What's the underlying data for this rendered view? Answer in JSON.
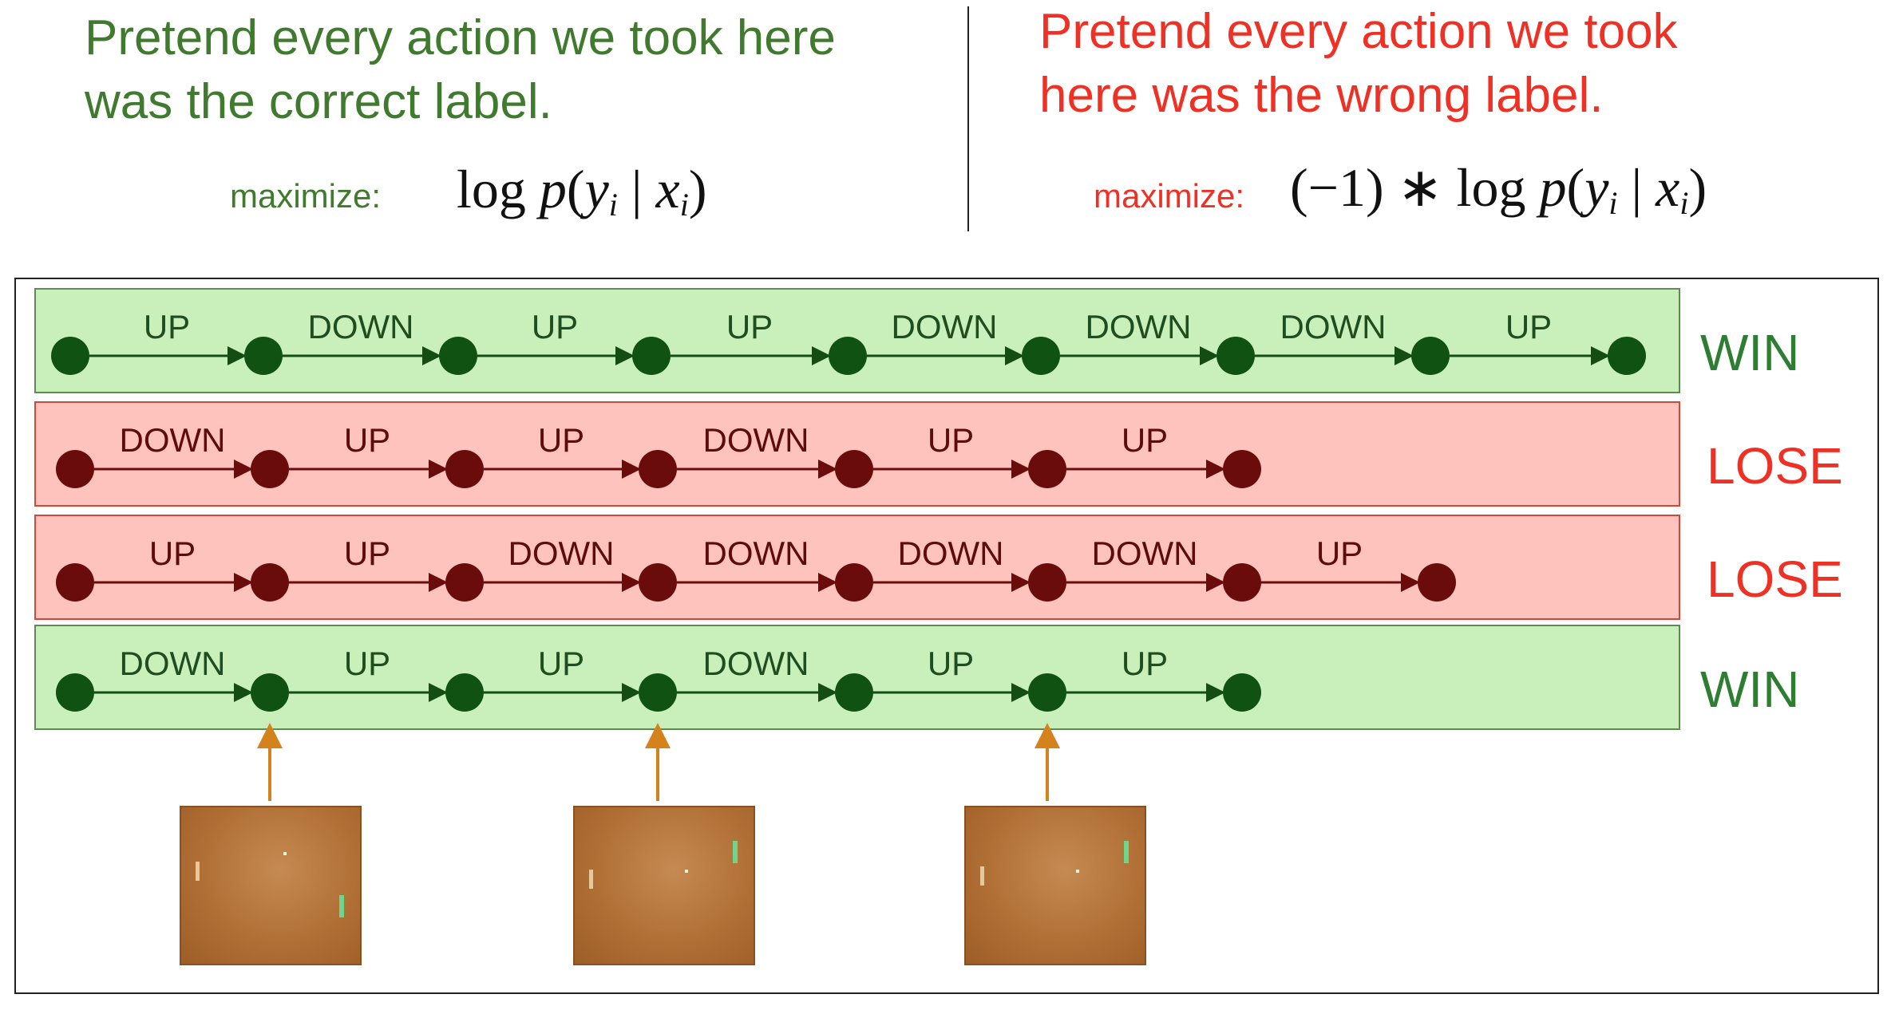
{
  "header": {
    "left": {
      "title_line1": "Pretend every action we took here",
      "title_line2": "was the correct label.",
      "maximize_label": "maximize:",
      "formula": {
        "log": "log",
        "p": "p",
        "y": "y",
        "i1": "i",
        "x": "x",
        "i2": "i"
      }
    },
    "right": {
      "title_line1": "Pretend every action we took",
      "title_line2": "here was the wrong label.",
      "maximize_label": "maximize:",
      "formula": {
        "neg": "(−1) ∗ ",
        "log": "log",
        "p": "p",
        "y": "y",
        "i1": "i",
        "x": "x",
        "i2": "i"
      }
    }
  },
  "rollouts": [
    {
      "outcome": "WIN",
      "actions": [
        "UP",
        "DOWN",
        "UP",
        "UP",
        "DOWN",
        "DOWN",
        "DOWN",
        "UP"
      ]
    },
    {
      "outcome": "LOSE",
      "actions": [
        "DOWN",
        "UP",
        "UP",
        "DOWN",
        "UP",
        "UP"
      ]
    },
    {
      "outcome": "LOSE",
      "actions": [
        "UP",
        "UP",
        "DOWN",
        "DOWN",
        "DOWN",
        "DOWN",
        "UP"
      ]
    },
    {
      "outcome": "WIN",
      "actions": [
        "DOWN",
        "UP",
        "UP",
        "DOWN",
        "UP",
        "UP"
      ]
    }
  ],
  "colors": {
    "win_bg": "#c9f0bb",
    "lose_bg": "#ffc3bd",
    "win_node": "#0f5212",
    "lose_node": "#6b0c0c",
    "arrow": "#d4831c"
  },
  "game_frames": {
    "count": 3,
    "source_row": 4,
    "source_nodes": [
      1,
      3,
      5
    ],
    "image_kind": "pong-frame"
  }
}
